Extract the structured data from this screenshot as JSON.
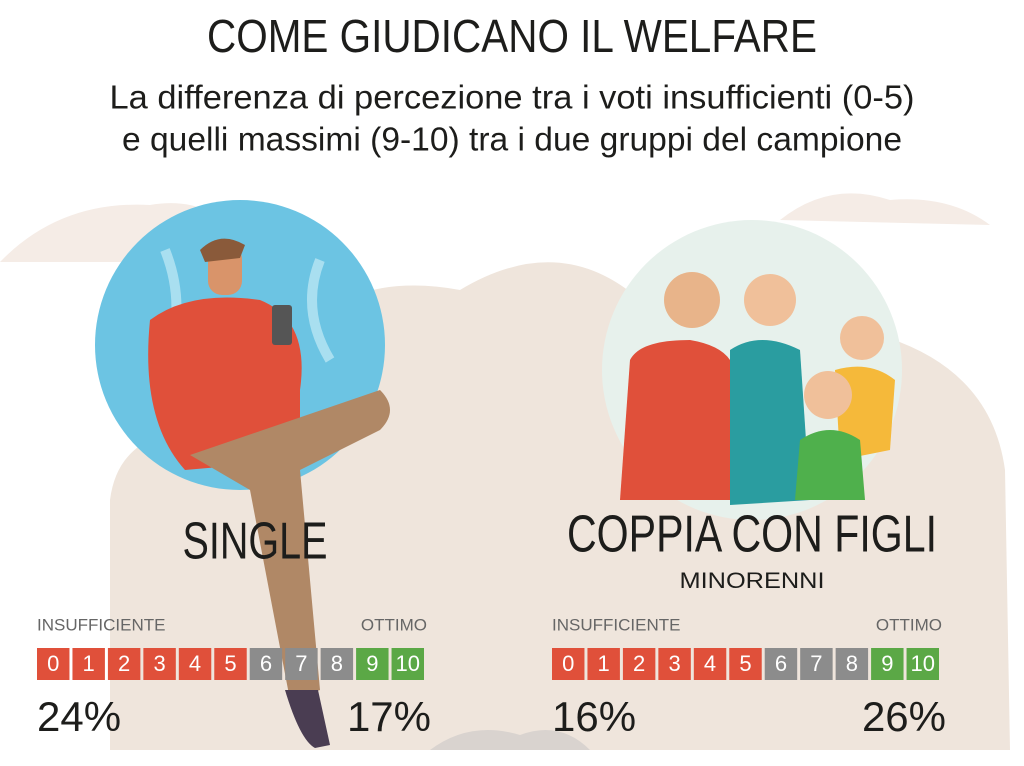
{
  "header": {
    "title": "COME GIUDICANO IL WELFARE",
    "subtitle": [
      "La differenza di percezione tra i voti insufficienti (0-5)",
      "e quelli massimi (9-10) tra i due gruppi del campione"
    ]
  },
  "groups": [
    {
      "name": "SINGLE",
      "low_label": "INSUFFICIENTE",
      "high_label": "OTTIMO",
      "scale": [
        {
          "label": 0,
          "color": "#e0503a"
        },
        {
          "label": 1,
          "color": "#e0503a"
        },
        {
          "label": 2,
          "color": "#e0503a"
        },
        {
          "label": 3,
          "color": "#e0503a"
        },
        {
          "label": 4,
          "color": "#e0503a"
        },
        {
          "label": 5,
          "color": "#e0503a"
        },
        {
          "label": 6,
          "color": "#8c8c8c"
        },
        {
          "label": 7,
          "color": "#8c8c8c"
        },
        {
          "label": 8,
          "color": "#8c8c8c"
        },
        {
          "label": 9,
          "color": "#5ba846"
        },
        {
          "label": 10,
          "color": "#5ba846"
        }
      ],
      "low_share": "24%",
      "high_share": "17%"
    },
    {
      "name": "COPPIA CON FIGLI",
      "note": "MINORENNI",
      "low_label": "INSUFFICIENTE",
      "high_label": "OTTIMO",
      "scale": [
        {
          "label": 0,
          "color": "#e0503a"
        },
        {
          "label": 1,
          "color": "#e0503a"
        },
        {
          "label": 2,
          "color": "#e0503a"
        },
        {
          "label": 3,
          "color": "#e0503a"
        },
        {
          "label": 4,
          "color": "#e0503a"
        },
        {
          "label": 5,
          "color": "#e0503a"
        },
        {
          "label": 6,
          "color": "#8c8c8c"
        },
        {
          "label": 7,
          "color": "#8c8c8c"
        },
        {
          "label": 8,
          "color": "#8c8c8c"
        },
        {
          "label": 9,
          "color": "#5ba846"
        },
        {
          "label": 10,
          "color": "#5ba846"
        }
      ],
      "low_share": "16%",
      "high_share": "26%"
    }
  ]
}
